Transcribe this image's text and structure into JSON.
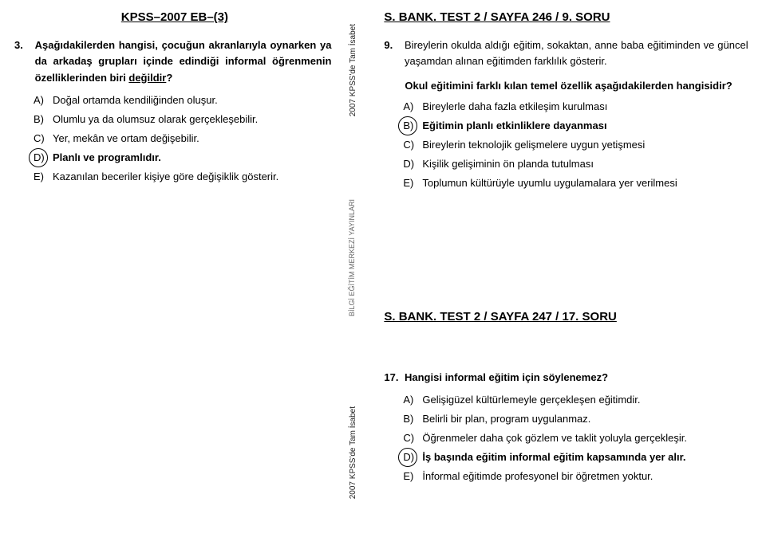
{
  "left": {
    "header": "KPSS–2007 EB–(3)",
    "q3": {
      "num": "3.",
      "text_parts": [
        "Aşağıdakilerden hangisi, çocuğun akranlarıyla oynarken ya da arkadaş grupları içinde edindiği informal öğrenmenin özelliklerinden biri ",
        "değildir",
        "?"
      ],
      "options": [
        {
          "l": "A)",
          "t": "Doğal ortamda kendiliğinden oluşur."
        },
        {
          "l": "B)",
          "t": "Olumlu ya da olumsuz olarak gerçekleşebilir."
        },
        {
          "l": "C)",
          "t": "Yer, mekân ve ortam değişebilir."
        },
        {
          "l": "D)",
          "t": "Planlı ve programlıdır."
        },
        {
          "l": "E)",
          "t": "Kazanılan beceriler kişiye göre değişiklik gösterir."
        }
      ],
      "correct": 3
    }
  },
  "right": {
    "section1": {
      "header": "S. BANK. TEST 2  / SAYFA 246 / 9. SORU",
      "q9": {
        "num": "9.",
        "intro": "Bireylerin okulda aldığı eğitim, sokaktan, anne baba eğitiminden ve güncel yaşamdan alınan eğitimden farklılık gösterir.",
        "ask": "Okul eğitimini farklı kılan temel özellik aşağıdakilerden hangisidir?",
        "options": [
          {
            "l": "A)",
            "t": "Bireylerle daha fazla etkileşim kurulması"
          },
          {
            "l": "B)",
            "t": "Eğitimin planlı etkinliklere dayanması"
          },
          {
            "l": "C)",
            "t": "Bireylerin teknolojik gelişmelere uygun yetişmesi"
          },
          {
            "l": "D)",
            "t": "Kişilik gelişiminin ön planda tutulması"
          },
          {
            "l": "E)",
            "t": "Toplumun kültürüyle uyumlu uygulamalara yer verilmesi"
          }
        ],
        "correct": 1
      }
    },
    "section2": {
      "header": "S. BANK. TEST 2  / SAYFA 247 / 17. SORU",
      "q17": {
        "num": "17.",
        "ask": "Hangisi informal eğitim için söylenemez?",
        "options": [
          {
            "l": "A)",
            "t": "Gelişigüzel kültürlemeyle gerçekleşen eğitimdir."
          },
          {
            "l": "B)",
            "t": "Belirli bir plan, program uygulanmaz."
          },
          {
            "l": "C)",
            "t": "Öğrenmeler daha çok gözlem ve taklit yoluyla gerçekleşir."
          },
          {
            "l": "D)",
            "t": "İş başında eğitim informal eğitim kapsamında yer alır."
          },
          {
            "l": "E)",
            "t": "İnformal eğitimde profesyonel bir öğretmen yoktur."
          }
        ],
        "correct": 3
      }
    }
  },
  "spine": {
    "top": "2007 KPSS'de Tam İsabet",
    "mid": "BİLGİ EĞİTİM MERKEZİ YAYINLARI",
    "bot": "2007 KPSS'de Tam İsabet"
  },
  "colors": {
    "text": "#000000",
    "bg": "#ffffff",
    "spine_light": "#999999"
  }
}
